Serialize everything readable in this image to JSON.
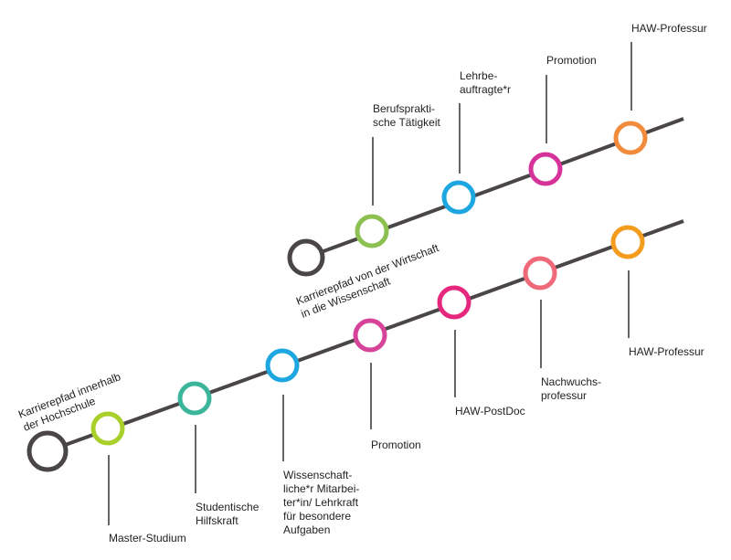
{
  "colors": {
    "line": "#4a4647",
    "start": "#4a4647",
    "leader": "#333333",
    "text": "#222222"
  },
  "top_path": {
    "label": [
      "Karrierepfad von der Wirtschaft",
      "in die Wissenschaft"
    ],
    "stations": [
      {
        "label": [
          "Berufsprakti-",
          "sche Tätigkeit"
        ],
        "color": "#8cc152"
      },
      {
        "label": [
          "Lehrbe-",
          "auftragte*r"
        ],
        "color": "#1ea6e0"
      },
      {
        "label": [
          "Promotion"
        ],
        "color": "#d6339a"
      },
      {
        "label": [
          "HAW-Professur"
        ],
        "color": "#f28c3c"
      }
    ]
  },
  "bottom_path": {
    "label": [
      "Karrierepfad innerhalb",
      "der Hochschule"
    ],
    "stations": [
      {
        "label": [
          "Master-Studium"
        ],
        "color": "#a8cf2a"
      },
      {
        "label": [
          "Studentische",
          "Hilfskraft"
        ],
        "color": "#3bb59a"
      },
      {
        "label": [
          "Wissenschaft-",
          "liche*r Mitarbei-",
          "ter*in/ Lehrkraft",
          "für besondere",
          "Aufgaben"
        ],
        "color": "#1ea6e0"
      },
      {
        "label": [
          "Promotion"
        ],
        "color": "#d6449a"
      },
      {
        "label": [
          "HAW-PostDoc"
        ],
        "color": "#e5287e"
      },
      {
        "label": [
          "Nachwuchs-",
          "professur"
        ],
        "color": "#ee6a78"
      },
      {
        "label": [
          "HAW-Professur"
        ],
        "color": "#f39c1e"
      }
    ]
  }
}
